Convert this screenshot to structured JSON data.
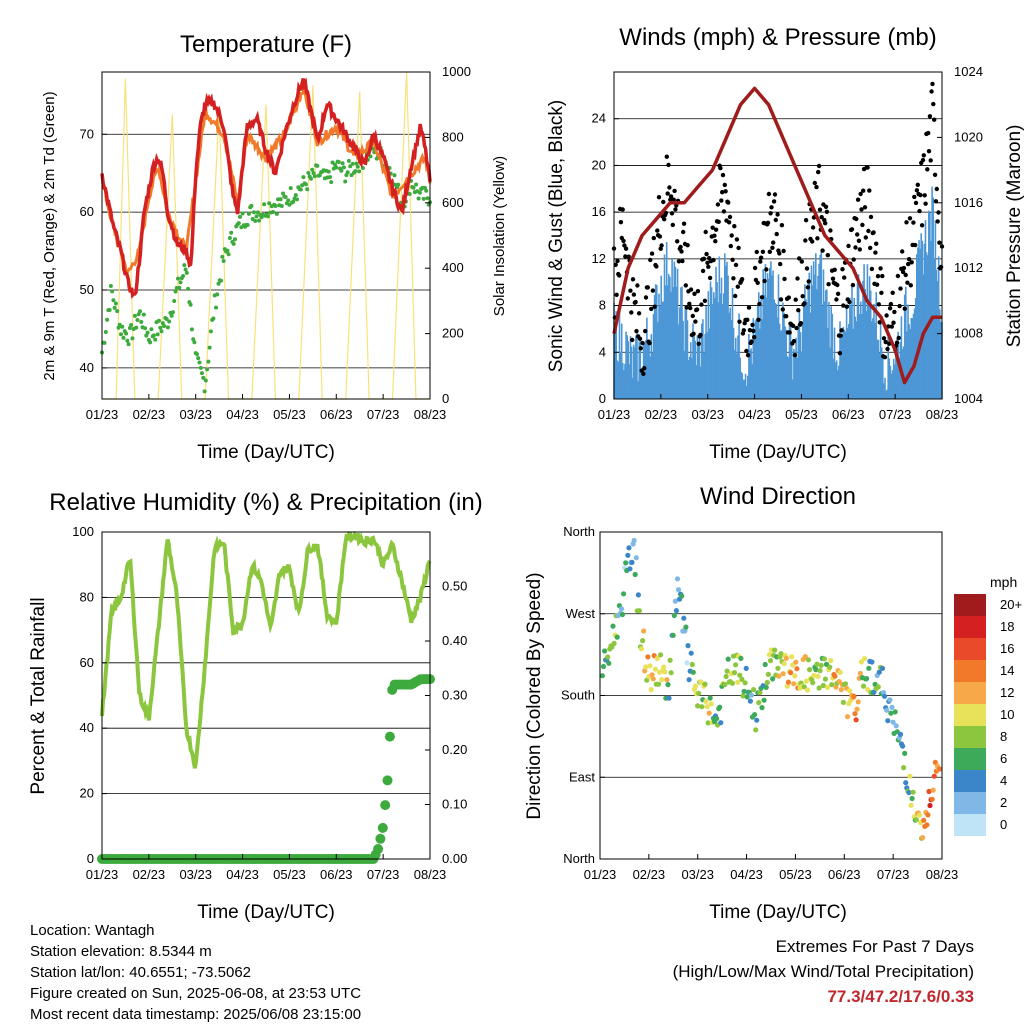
{
  "panels": {
    "temperature": {
      "title": "Temperature (F)",
      "ylabel": "2m & 9m T (Red, Orange) & 2m Td (Green)",
      "y2label": "Solar Insolation (Yellow)",
      "xlabel": "Time (Day/UTC)"
    },
    "winds": {
      "title": "Winds (mph) & Pressure (mb)",
      "ylabel": "Sonic Wind & Gust (Blue, Black)",
      "y2label": "Station Pressure (Maroon)",
      "xlabel": "Time (Day/UTC)"
    },
    "humidity": {
      "title": "Relative Humidity (%) & Precipitation (in)",
      "ylabel": "Percent & Total Rainfall",
      "xlabel": "Time (Day/UTC)"
    },
    "direction": {
      "title": "Wind Direction",
      "ylabel": "Direction (Colored By Speed)",
      "xlabel": "Time (Day/UTC)",
      "legend_title": "mph"
    }
  },
  "info": {
    "location": "Location: Wantagh",
    "elevation": "Station elevation: 8.5344 m",
    "latlon": "Station lat/lon: 40.6551; -73.5062",
    "created": "Figure created on Sun, 2025-06-08, at 23:53 UTC",
    "latest": "Most recent data timestamp: 2025/06/08 23:15:00"
  },
  "extremes": {
    "heading": "Extremes For Past 7 Days",
    "subheading": "(High/Low/Max Wind/Total Precipitation)",
    "values": "77.3/47.2/17.6/0.33"
  },
  "colors": {
    "temp2m": "#d42020",
    "temp9m": "#f07a2a",
    "dewpoint": "#3daa3d",
    "solar": "#f7e27a",
    "wind": "#4d97d6",
    "gust": "#000000",
    "pressure": "#a01b1b",
    "rh": "#8cc63f",
    "precip": "#3daa3d"
  },
  "chart_data": [
    {
      "type": "line",
      "id": "temperature",
      "title": "Temperature (F)",
      "xlabel": "Time (Day/UTC)",
      "ylabel": "2m & 9m T (Red, Orange) & 2m Td (Green)",
      "y2label": "Solar Insolation (Yellow)",
      "x_ticks": [
        "01/23",
        "02/23",
        "03/23",
        "04/23",
        "05/23",
        "06/23",
        "07/23",
        "08/23"
      ],
      "ylim": [
        36,
        78
      ],
      "y_ticks": [
        40,
        50,
        60,
        70
      ],
      "y2lim": [
        0,
        1000
      ],
      "y2_ticks": [
        0,
        200,
        400,
        600,
        800,
        1000
      ],
      "series": [
        {
          "name": "2m T (Red)",
          "x": [
            0,
            0.1,
            0.25,
            0.4,
            0.55,
            0.7,
            0.8,
            0.9,
            1,
            1.1,
            1.2,
            1.3,
            1.4,
            1.6,
            1.8,
            1.9,
            2,
            2.1,
            2.2,
            2.4,
            2.6,
            2.8,
            2.9,
            3,
            3.1,
            3.3,
            3.5,
            3.7,
            3.9,
            4.1,
            4.3,
            4.5,
            4.6,
            4.8,
            5,
            5.2,
            5.4,
            5.6,
            5.8,
            6,
            6.2,
            6.4,
            6.6,
            6.8,
            6.9,
            7
          ],
          "values": [
            65,
            62,
            58,
            55,
            51,
            49,
            54,
            60,
            63,
            66,
            67,
            65,
            60,
            56,
            55,
            53,
            65,
            71,
            74,
            74,
            71,
            62,
            60,
            66,
            71,
            72,
            68,
            65,
            70,
            74,
            77,
            72,
            69,
            74,
            72,
            70,
            68,
            66,
            70,
            67,
            63,
            60,
            66,
            71,
            68,
            64
          ]
        },
        {
          "name": "9m T (Orange)",
          "x": [
            0,
            0.25,
            0.55,
            0.8,
            1,
            1.2,
            1.4,
            1.8,
            2,
            2.2,
            2.6,
            2.9,
            3.1,
            3.5,
            3.9,
            4.3,
            4.6,
            5,
            5.4,
            5.8,
            6.2,
            6.6,
            6.9,
            7
          ],
          "values": [
            64,
            58,
            52,
            55,
            62,
            66,
            60,
            55,
            64,
            73,
            70,
            61,
            70,
            67,
            70,
            76,
            69,
            71,
            67,
            69,
            62,
            65,
            67,
            64
          ]
        },
        {
          "name": "2m Td (Green)",
          "x": [
            0,
            0.2,
            0.4,
            0.6,
            0.8,
            1,
            1.2,
            1.4,
            1.6,
            1.8,
            2,
            2.2,
            2.4,
            2.6,
            2.8,
            3,
            3.2,
            3.4,
            3.6,
            3.8,
            4,
            4.2,
            4.4,
            4.6,
            4.8,
            5,
            5.2,
            5.4,
            5.6,
            5.8,
            6,
            6.2,
            6.4,
            6.6,
            6.8,
            7
          ],
          "values": [
            42,
            50,
            45,
            44,
            47,
            44,
            45,
            46,
            50,
            53,
            41,
            38,
            48,
            54,
            57,
            59,
            60,
            60,
            61,
            61,
            62,
            63,
            64,
            65,
            64,
            66,
            65,
            66,
            67,
            68,
            67,
            65,
            61,
            64,
            62,
            62
          ]
        },
        {
          "name": "Solar Insolation (Yellow)",
          "axis": "y2",
          "x": [
            0,
            0.3,
            0.5,
            0.7,
            1,
            1.2,
            1.5,
            1.7,
            2,
            2.2,
            2.5,
            2.7,
            3,
            3.2,
            3.5,
            3.7,
            4,
            4.2,
            4.5,
            4.7,
            5,
            5.2,
            5.5,
            5.7,
            6,
            6.2,
            6.5,
            6.7,
            7
          ],
          "values": [
            0,
            0,
            980,
            0,
            0,
            0,
            870,
            0,
            0,
            0,
            890,
            0,
            0,
            0,
            900,
            0,
            0,
            0,
            960,
            0,
            0,
            0,
            940,
            0,
            0,
            0,
            1000,
            0,
            0
          ]
        }
      ]
    },
    {
      "type": "scatter",
      "id": "winds",
      "title": "Winds (mph) & Pressure (mb)",
      "xlabel": "Time (Day/UTC)",
      "ylabel": "Sonic Wind & Gust (Blue, Black)",
      "y2label": "Station Pressure (Maroon)",
      "x_ticks": [
        "01/23",
        "02/23",
        "03/23",
        "04/23",
        "05/23",
        "06/23",
        "07/23",
        "08/23"
      ],
      "ylim": [
        0,
        28
      ],
      "y_ticks": [
        0,
        4,
        8,
        12,
        16,
        20,
        24
      ],
      "y2lim": [
        1004,
        1024
      ],
      "y2_ticks": [
        1004,
        1008,
        1012,
        1016,
        1020,
        1024
      ],
      "series": [
        {
          "name": "Sonic Wind (Blue)",
          "x": [
            0,
            0.2,
            0.4,
            0.6,
            0.8,
            1,
            1.2,
            1.4,
            1.6,
            1.8,
            2,
            2.2,
            2.4,
            2.6,
            2.8,
            3,
            3.2,
            3.4,
            3.6,
            3.8,
            4,
            4.2,
            4.4,
            4.6,
            4.8,
            5,
            5.2,
            5.4,
            5.6,
            5.8,
            6,
            6.2,
            6.4,
            6.6,
            6.8,
            7
          ],
          "values": [
            5,
            4,
            2,
            3,
            5,
            9,
            11,
            7,
            4,
            3,
            6,
            9,
            10,
            5,
            2,
            4,
            8,
            10,
            6,
            3,
            5,
            9,
            10,
            6,
            3,
            5,
            8,
            9,
            6,
            2,
            3,
            6,
            8,
            12,
            15,
            7
          ]
        },
        {
          "name": "Gust (Black)",
          "x": [
            0,
            0.2,
            0.4,
            0.6,
            0.8,
            1,
            1.2,
            1.4,
            1.6,
            1.8,
            2,
            2.2,
            2.4,
            2.6,
            2.8,
            3,
            3.2,
            3.4,
            3.6,
            3.8,
            4,
            4.2,
            4.4,
            4.6,
            4.8,
            5,
            5.2,
            5.4,
            5.6,
            5.8,
            6,
            6.2,
            6.4,
            6.6,
            6.8,
            7
          ],
          "values": [
            10,
            15,
            8,
            5,
            9,
            16,
            19,
            14,
            9,
            7,
            12,
            16,
            18,
            11,
            6,
            8,
            13,
            16,
            11,
            6,
            10,
            14,
            17,
            12,
            7,
            11,
            15,
            17,
            12,
            5,
            7,
            11,
            14,
            18,
            24,
            12
          ]
        },
        {
          "name": "Station Pressure (Maroon)",
          "axis": "y2",
          "x": [
            0,
            0.3,
            0.6,
            0.9,
            1.2,
            1.5,
            1.8,
            2.1,
            2.4,
            2.7,
            3,
            3.3,
            3.6,
            3.9,
            4.2,
            4.5,
            4.8,
            5.1,
            5.4,
            5.7,
            6,
            6.2,
            6.4,
            6.6,
            6.8,
            7
          ],
          "values": [
            1008,
            1012,
            1014,
            1015,
            1016,
            1016,
            1017,
            1018,
            1020,
            1022,
            1023,
            1022,
            1020,
            1018,
            1016,
            1014,
            1013,
            1012,
            1010,
            1009,
            1007,
            1005,
            1006,
            1008,
            1009,
            1009
          ]
        }
      ]
    },
    {
      "type": "line",
      "id": "humidity",
      "title": "Relative Humidity (%) & Precipitation (in)",
      "xlabel": "Time (Day/UTC)",
      "ylabel": "Percent & Total Rainfall",
      "x_ticks": [
        "01/23",
        "02/23",
        "03/23",
        "04/23",
        "05/23",
        "06/23",
        "07/23",
        "08/23"
      ],
      "ylim": [
        0,
        100
      ],
      "y_ticks": [
        0,
        20,
        40,
        60,
        80,
        100
      ],
      "y2lim": [
        0,
        0.6
      ],
      "y2_ticks": [
        0.0,
        0.1,
        0.2,
        0.3,
        0.4,
        0.5
      ],
      "series": [
        {
          "name": "Relative Humidity",
          "x": [
            0,
            0.2,
            0.4,
            0.6,
            0.8,
            1,
            1.2,
            1.4,
            1.6,
            1.8,
            2,
            2.2,
            2.4,
            2.6,
            2.8,
            3,
            3.2,
            3.4,
            3.6,
            3.8,
            4,
            4.2,
            4.4,
            4.6,
            4.8,
            5,
            5.2,
            5.4,
            5.6,
            5.8,
            6,
            6.2,
            6.4,
            6.6,
            6.8,
            7
          ],
          "values": [
            44,
            75,
            80,
            92,
            50,
            43,
            70,
            98,
            80,
            40,
            28,
            60,
            95,
            97,
            70,
            72,
            90,
            85,
            70,
            88,
            89,
            75,
            95,
            96,
            75,
            72,
            98,
            99,
            97,
            98,
            90,
            96,
            85,
            73,
            80,
            92
          ]
        },
        {
          "name": "Total Precipitation",
          "axis": "y2",
          "x": [
            0,
            1,
            2,
            3,
            4,
            5,
            5.8,
            5.9,
            6,
            6.1,
            6.2,
            6.4,
            6.6,
            6.8,
            7
          ],
          "values": [
            0,
            0,
            0,
            0,
            0,
            0,
            0,
            0.02,
            0.06,
            0.15,
            0.32,
            0.32,
            0.32,
            0.33,
            0.33
          ]
        }
      ]
    },
    {
      "type": "scatter",
      "id": "direction",
      "title": "Wind Direction",
      "xlabel": "Time (Day/UTC)",
      "ylabel": "Direction (Colored By Speed)",
      "x_ticks": [
        "01/23",
        "02/23",
        "03/23",
        "04/23",
        "05/23",
        "06/23",
        "07/23",
        "08/23"
      ],
      "y_ticks": [
        "North",
        "East",
        "South",
        "West",
        "North"
      ],
      "ylim": [
        0,
        360
      ],
      "legend": {
        "title": "mph",
        "levels": [
          "20+",
          "18",
          "16",
          "14",
          "12",
          "10",
          "8",
          "6",
          "4",
          "2",
          "0"
        ],
        "colors": [
          "#a01b1b",
          "#d42020",
          "#e84a2a",
          "#f07a2a",
          "#f7a94a",
          "#e8e25a",
          "#8cc63f",
          "#3daa5a",
          "#3b86c8",
          "#7fb8e6",
          "#bfe4f7"
        ]
      },
      "series": [
        {
          "name": "Direction",
          "x": [
            0.1,
            0.2,
            0.3,
            0.4,
            0.5,
            0.6,
            0.7,
            0.8,
            1,
            1.2,
            1.4,
            1.6,
            1.8,
            2,
            2.2,
            2.4,
            2.6,
            2.8,
            3,
            3.2,
            3.4,
            3.6,
            3.8,
            4,
            4.2,
            4.4,
            4.6,
            4.8,
            5,
            5.2,
            5.4,
            5.6,
            5.8,
            6,
            6.2,
            6.4,
            6.6,
            6.8,
            6.9
          ],
          "values": [
            210,
            230,
            250,
            270,
            300,
            330,
            350,
            260,
            200,
            210,
            190,
            300,
            220,
            180,
            170,
            150,
            200,
            210,
            190,
            160,
            200,
            220,
            210,
            200,
            205,
            195,
            210,
            200,
            180,
            160,
            210,
            200,
            190,
            150,
            120,
            60,
            20,
            80,
            90
          ],
          "speeds": [
            4,
            6,
            8,
            4,
            3,
            5,
            4,
            6,
            12,
            10,
            8,
            3,
            4,
            8,
            10,
            6,
            8,
            10,
            4,
            6,
            8,
            8,
            10,
            12,
            10,
            8,
            8,
            12,
            10,
            14,
            8,
            6,
            4,
            4,
            6,
            8,
            12,
            16,
            14
          ]
        }
      ]
    }
  ]
}
